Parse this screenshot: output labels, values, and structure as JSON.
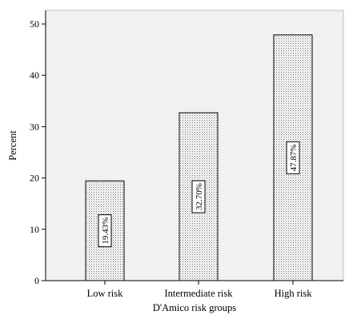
{
  "chart_data": {
    "type": "bar",
    "categories": [
      "Low risk",
      "Intermediate risk",
      "High risk"
    ],
    "values": [
      19.43,
      32.7,
      47.87
    ],
    "data_labels": [
      "19.43%",
      "32.70%",
      "47.87%"
    ],
    "xlabel": "D'Amico risk groups",
    "ylabel": "Percent",
    "ylim": [
      0,
      50
    ],
    "yticks": [
      0,
      10,
      20,
      30,
      40,
      50
    ],
    "grid": false,
    "legend": "none",
    "colors": {
      "plot_background": "#f1f1f1",
      "bar_fill": "#ffffff",
      "bar_stipple": "#6b6b6b",
      "bar_border": "#000000",
      "axis": "#000000"
    }
  }
}
